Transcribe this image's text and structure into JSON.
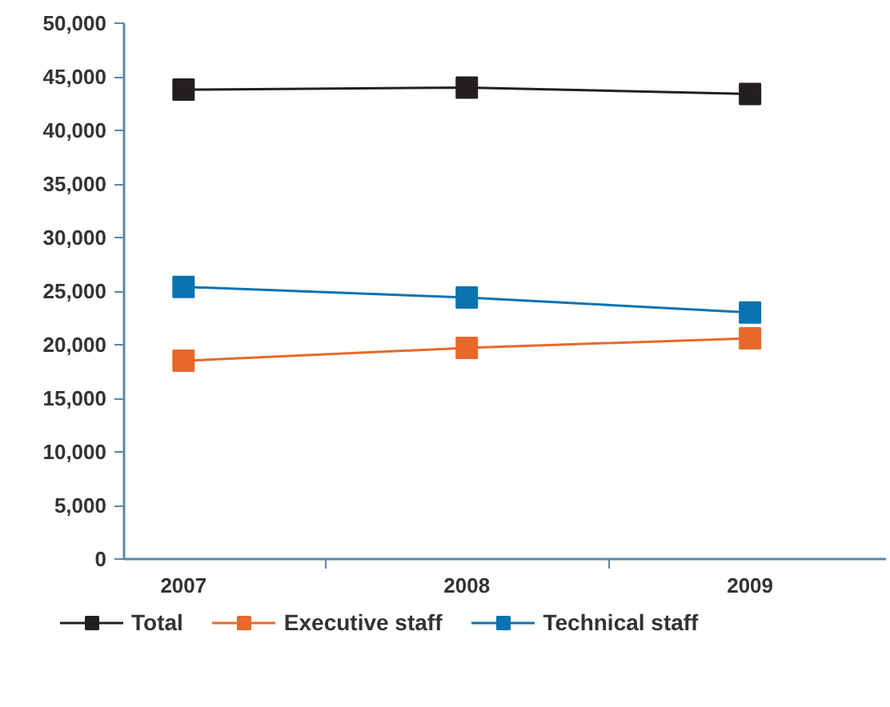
{
  "chart_data": {
    "type": "line",
    "categories": [
      "2007",
      "2008",
      "2009"
    ],
    "series": [
      {
        "name": "Total",
        "color": "#231f20",
        "values": [
          43800,
          44000,
          43400
        ]
      },
      {
        "name": "Executive staff",
        "color": "#e8692a",
        "values": [
          18500,
          19700,
          20600
        ]
      },
      {
        "name": "Technical staff",
        "color": "#0a73b0",
        "values": [
          25400,
          24400,
          23000
        ]
      }
    ],
    "ylim": [
      0,
      50000
    ],
    "yticks": [
      {
        "value": 0,
        "label": "0"
      },
      {
        "value": 5000,
        "label": "5,000"
      },
      {
        "value": 10000,
        "label": "10,000"
      },
      {
        "value": 15000,
        "label": "15,000"
      },
      {
        "value": 20000,
        "label": "20,000"
      },
      {
        "value": 25000,
        "label": "25,000"
      },
      {
        "value": 30000,
        "label": "30,000"
      },
      {
        "value": 35000,
        "label": "35,000"
      },
      {
        "value": 40000,
        "label": "40,000"
      },
      {
        "value": 45000,
        "label": "45,000"
      },
      {
        "value": 50000,
        "label": "50,000"
      }
    ],
    "grid": false,
    "legend": "bottom",
    "marker": "square",
    "line_style": "solid"
  }
}
